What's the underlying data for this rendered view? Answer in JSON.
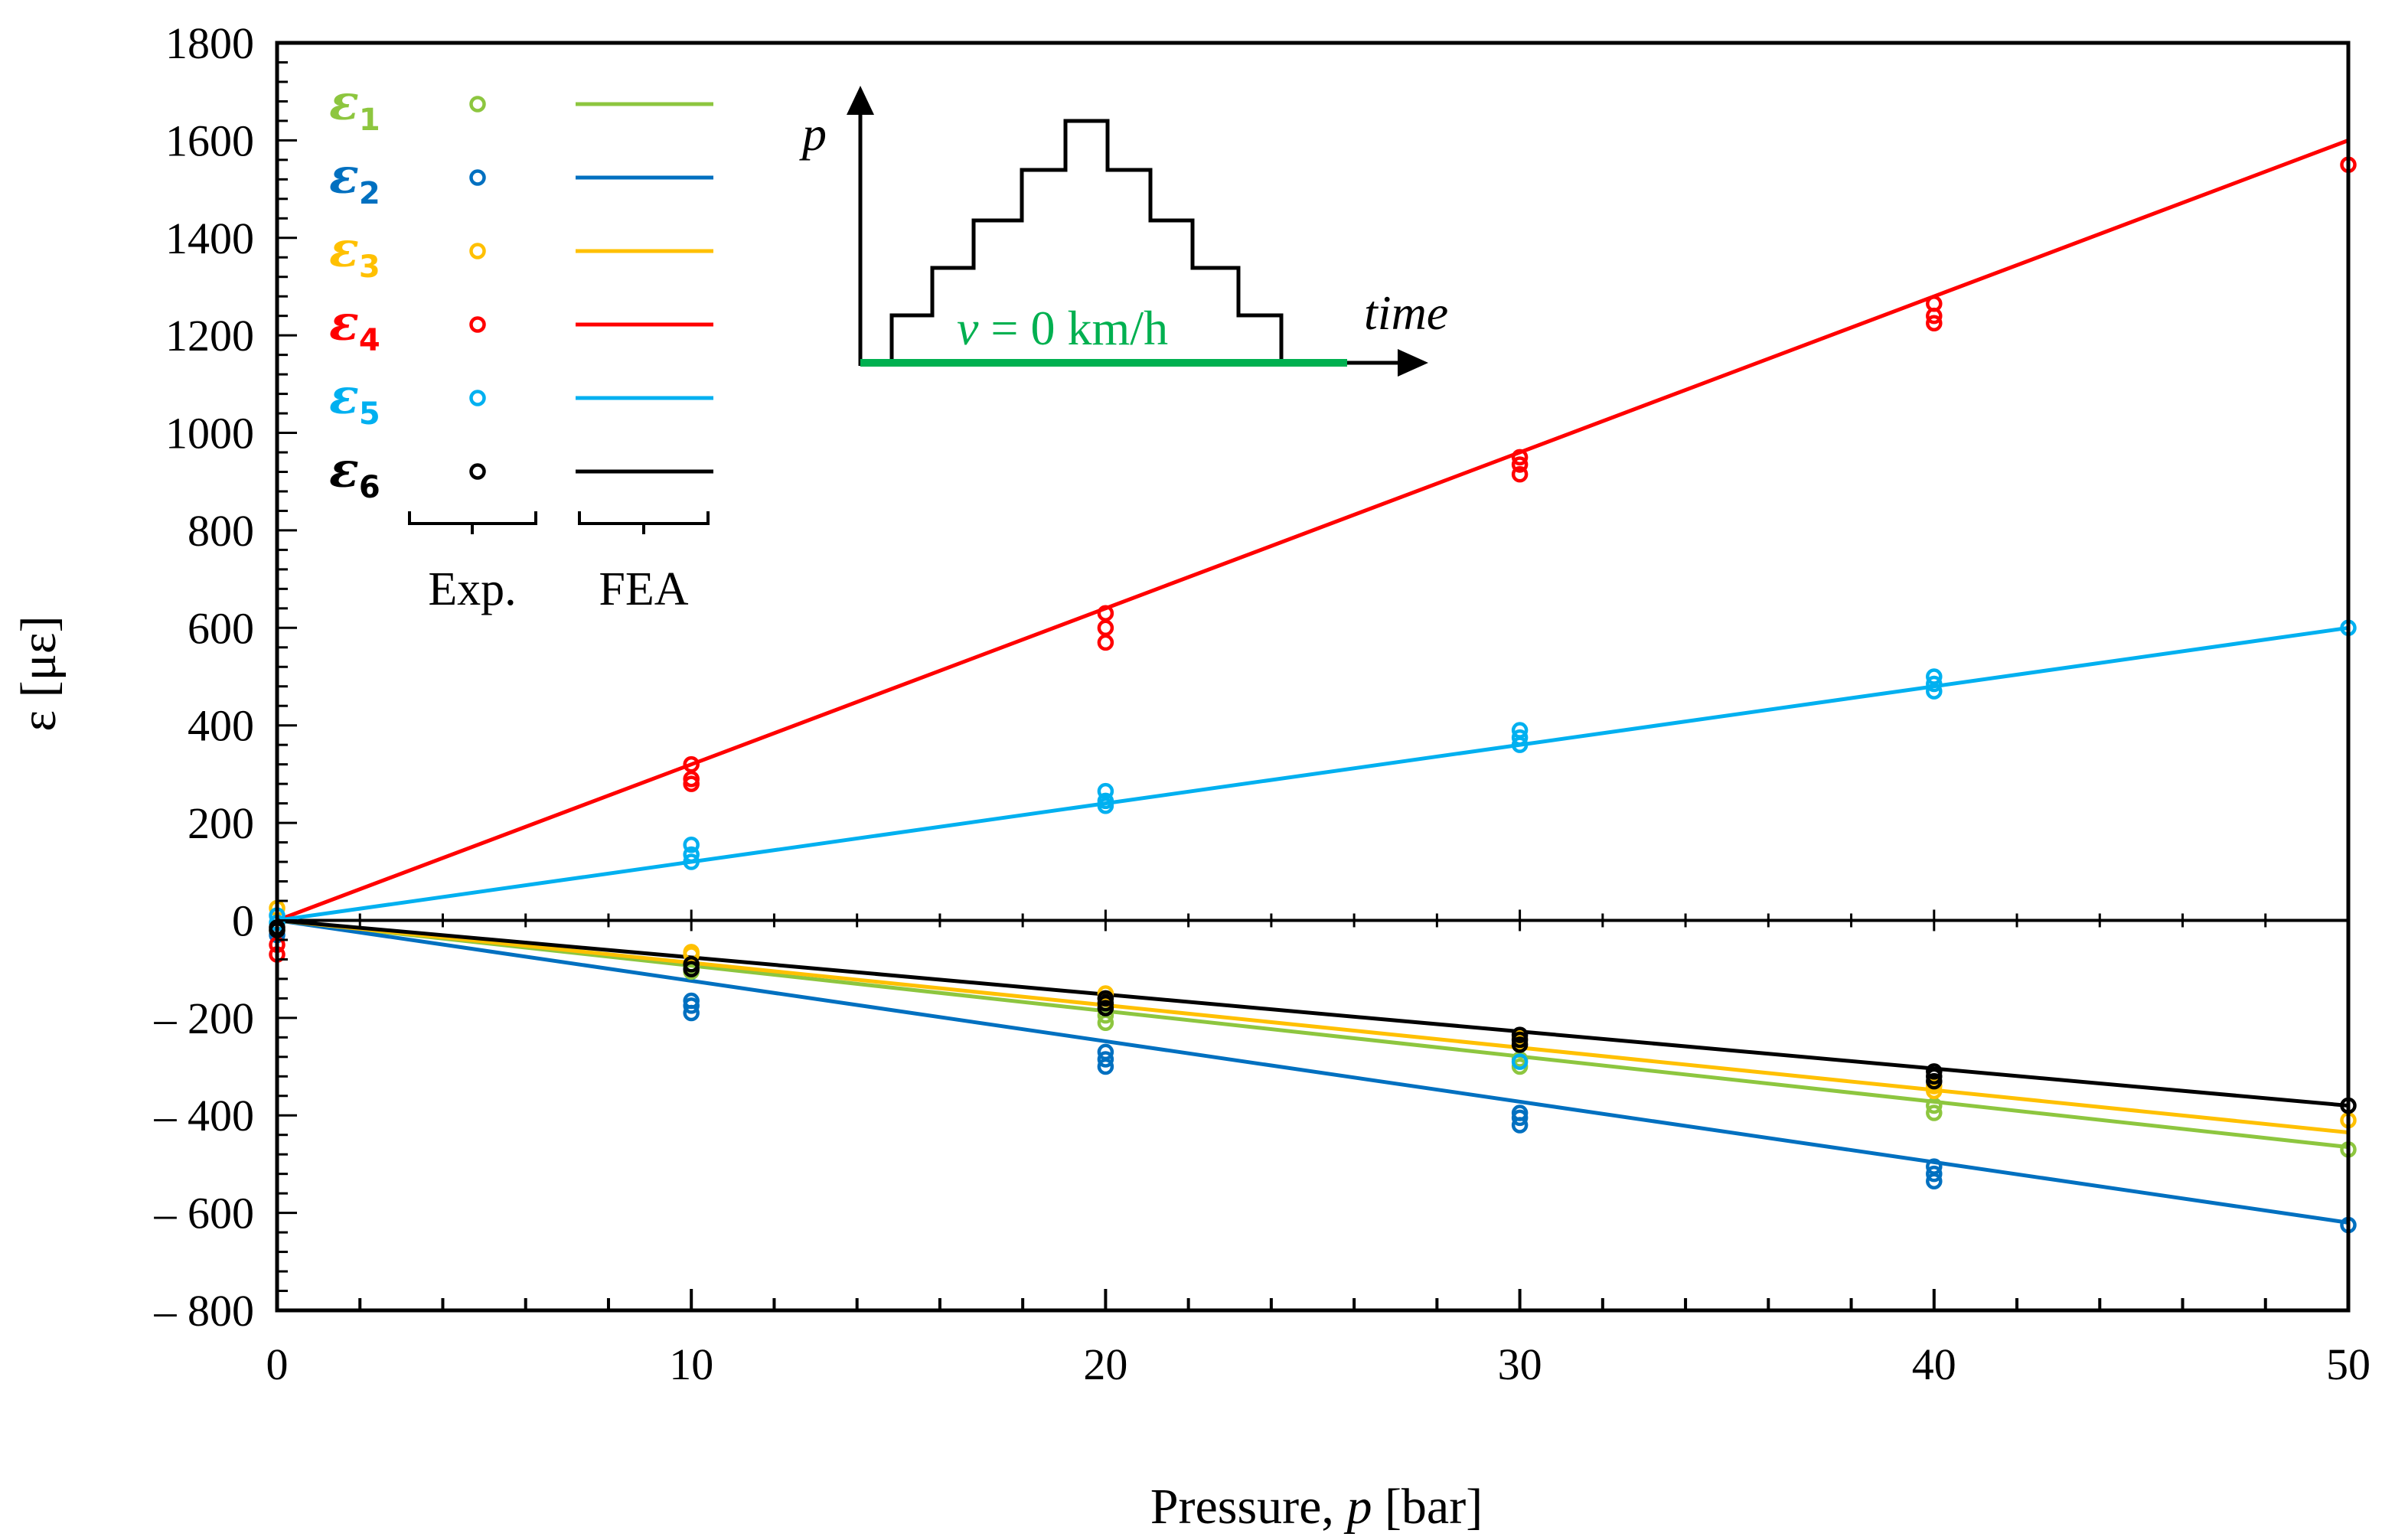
{
  "chart_data": {
    "type": "scatter",
    "title": "",
    "xlabel": "Pressure, ",
    "xlabel_var": "p",
    "xlabel_unit": " [bar]",
    "ylabel": "ε [με]",
    "xlim": [
      0,
      50
    ],
    "ylim": [
      -800,
      1800
    ],
    "x_ticks": [
      0,
      10,
      20,
      30,
      40,
      50
    ],
    "y_ticks": [
      -800,
      -600,
      -400,
      -200,
      0,
      200,
      400,
      600,
      800,
      1000,
      1200,
      1400,
      1600,
      1800
    ],
    "x_tick_labels": [
      "0",
      "10",
      "20",
      "30",
      "40",
      "50"
    ],
    "y_tick_labels": [
      "– 800",
      "– 600",
      "– 400",
      "– 200",
      "0",
      "200",
      "400",
      "600",
      "800",
      "1000",
      "1200",
      "1400",
      "1600",
      "1800"
    ],
    "legend_position": "top-left",
    "legend_footer": [
      "Exp.",
      "FEA"
    ],
    "series": [
      {
        "name": "ε1",
        "sym": "ε",
        "sub": "1",
        "color": "#8dc63f",
        "fea_slope": -9.3,
        "exp": [
          [
            0,
            -20
          ],
          [
            10,
            -105
          ],
          [
            10,
            -95
          ],
          [
            20,
            -210
          ],
          [
            20,
            -195
          ],
          [
            30,
            -300
          ],
          [
            30,
            -285
          ],
          [
            40,
            -395
          ],
          [
            40,
            -380
          ],
          [
            50,
            -470
          ]
        ]
      },
      {
        "name": "ε2",
        "sym": "ε",
        "sub": "2",
        "color": "#0070c0",
        "fea_slope": -12.4,
        "exp": [
          [
            0,
            -30
          ],
          [
            10,
            -190
          ],
          [
            10,
            -175
          ],
          [
            10,
            -165
          ],
          [
            20,
            -300
          ],
          [
            20,
            -285
          ],
          [
            20,
            -270
          ],
          [
            30,
            -420
          ],
          [
            30,
            -405
          ],
          [
            30,
            -395
          ],
          [
            40,
            -535
          ],
          [
            40,
            -520
          ],
          [
            40,
            -505
          ],
          [
            50,
            -625
          ]
        ]
      },
      {
        "name": "ε3",
        "sym": "ε",
        "sub": "3",
        "color": "#ffc000",
        "fea_slope": -8.7,
        "exp": [
          [
            0,
            25
          ],
          [
            10,
            -70
          ],
          [
            10,
            -65
          ],
          [
            20,
            -150
          ],
          [
            20,
            -160
          ],
          [
            30,
            -250
          ],
          [
            30,
            -240
          ],
          [
            40,
            -340
          ],
          [
            40,
            -350
          ],
          [
            50,
            -410
          ]
        ]
      },
      {
        "name": "ε4",
        "sym": "ε",
        "sub": "4",
        "color": "#ff0000",
        "fea_slope": 32.0,
        "exp": [
          [
            0,
            -50
          ],
          [
            0,
            -70
          ],
          [
            10,
            320
          ],
          [
            10,
            290
          ],
          [
            10,
            280
          ],
          [
            20,
            630
          ],
          [
            20,
            600
          ],
          [
            20,
            570
          ],
          [
            30,
            950
          ],
          [
            30,
            935
          ],
          [
            30,
            915
          ],
          [
            40,
            1265
          ],
          [
            40,
            1240
          ],
          [
            40,
            1225
          ],
          [
            50,
            1550
          ]
        ]
      },
      {
        "name": "ε5",
        "sym": "ε",
        "sub": "5",
        "color": "#00b0f0",
        "fea_slope": 12.0,
        "exp": [
          [
            0,
            10
          ],
          [
            0,
            -5
          ],
          [
            10,
            155
          ],
          [
            10,
            135
          ],
          [
            10,
            120
          ],
          [
            20,
            265
          ],
          [
            20,
            245
          ],
          [
            20,
            235
          ],
          [
            30,
            390
          ],
          [
            30,
            375
          ],
          [
            30,
            360
          ],
          [
            30,
            -290
          ],
          [
            40,
            500
          ],
          [
            40,
            485
          ],
          [
            40,
            470
          ],
          [
            50,
            600
          ]
        ]
      },
      {
        "name": "ε6",
        "sym": "ε",
        "sub": "6",
        "color": "#000000",
        "fea_slope": -7.6,
        "exp": [
          [
            0,
            -15
          ],
          [
            0,
            -20
          ],
          [
            10,
            -90
          ],
          [
            10,
            -100
          ],
          [
            20,
            -160
          ],
          [
            20,
            -170
          ],
          [
            20,
            -180
          ],
          [
            30,
            -235
          ],
          [
            30,
            -245
          ],
          [
            30,
            -255
          ],
          [
            40,
            -310
          ],
          [
            40,
            -320
          ],
          [
            40,
            -330
          ],
          [
            50,
            -380
          ]
        ]
      }
    ]
  },
  "inset": {
    "y_axis_label": "p",
    "x_axis_label": "time",
    "speed_var": "v",
    "speed_value": " = 0 km/h",
    "speed_color": "#00b050"
  }
}
